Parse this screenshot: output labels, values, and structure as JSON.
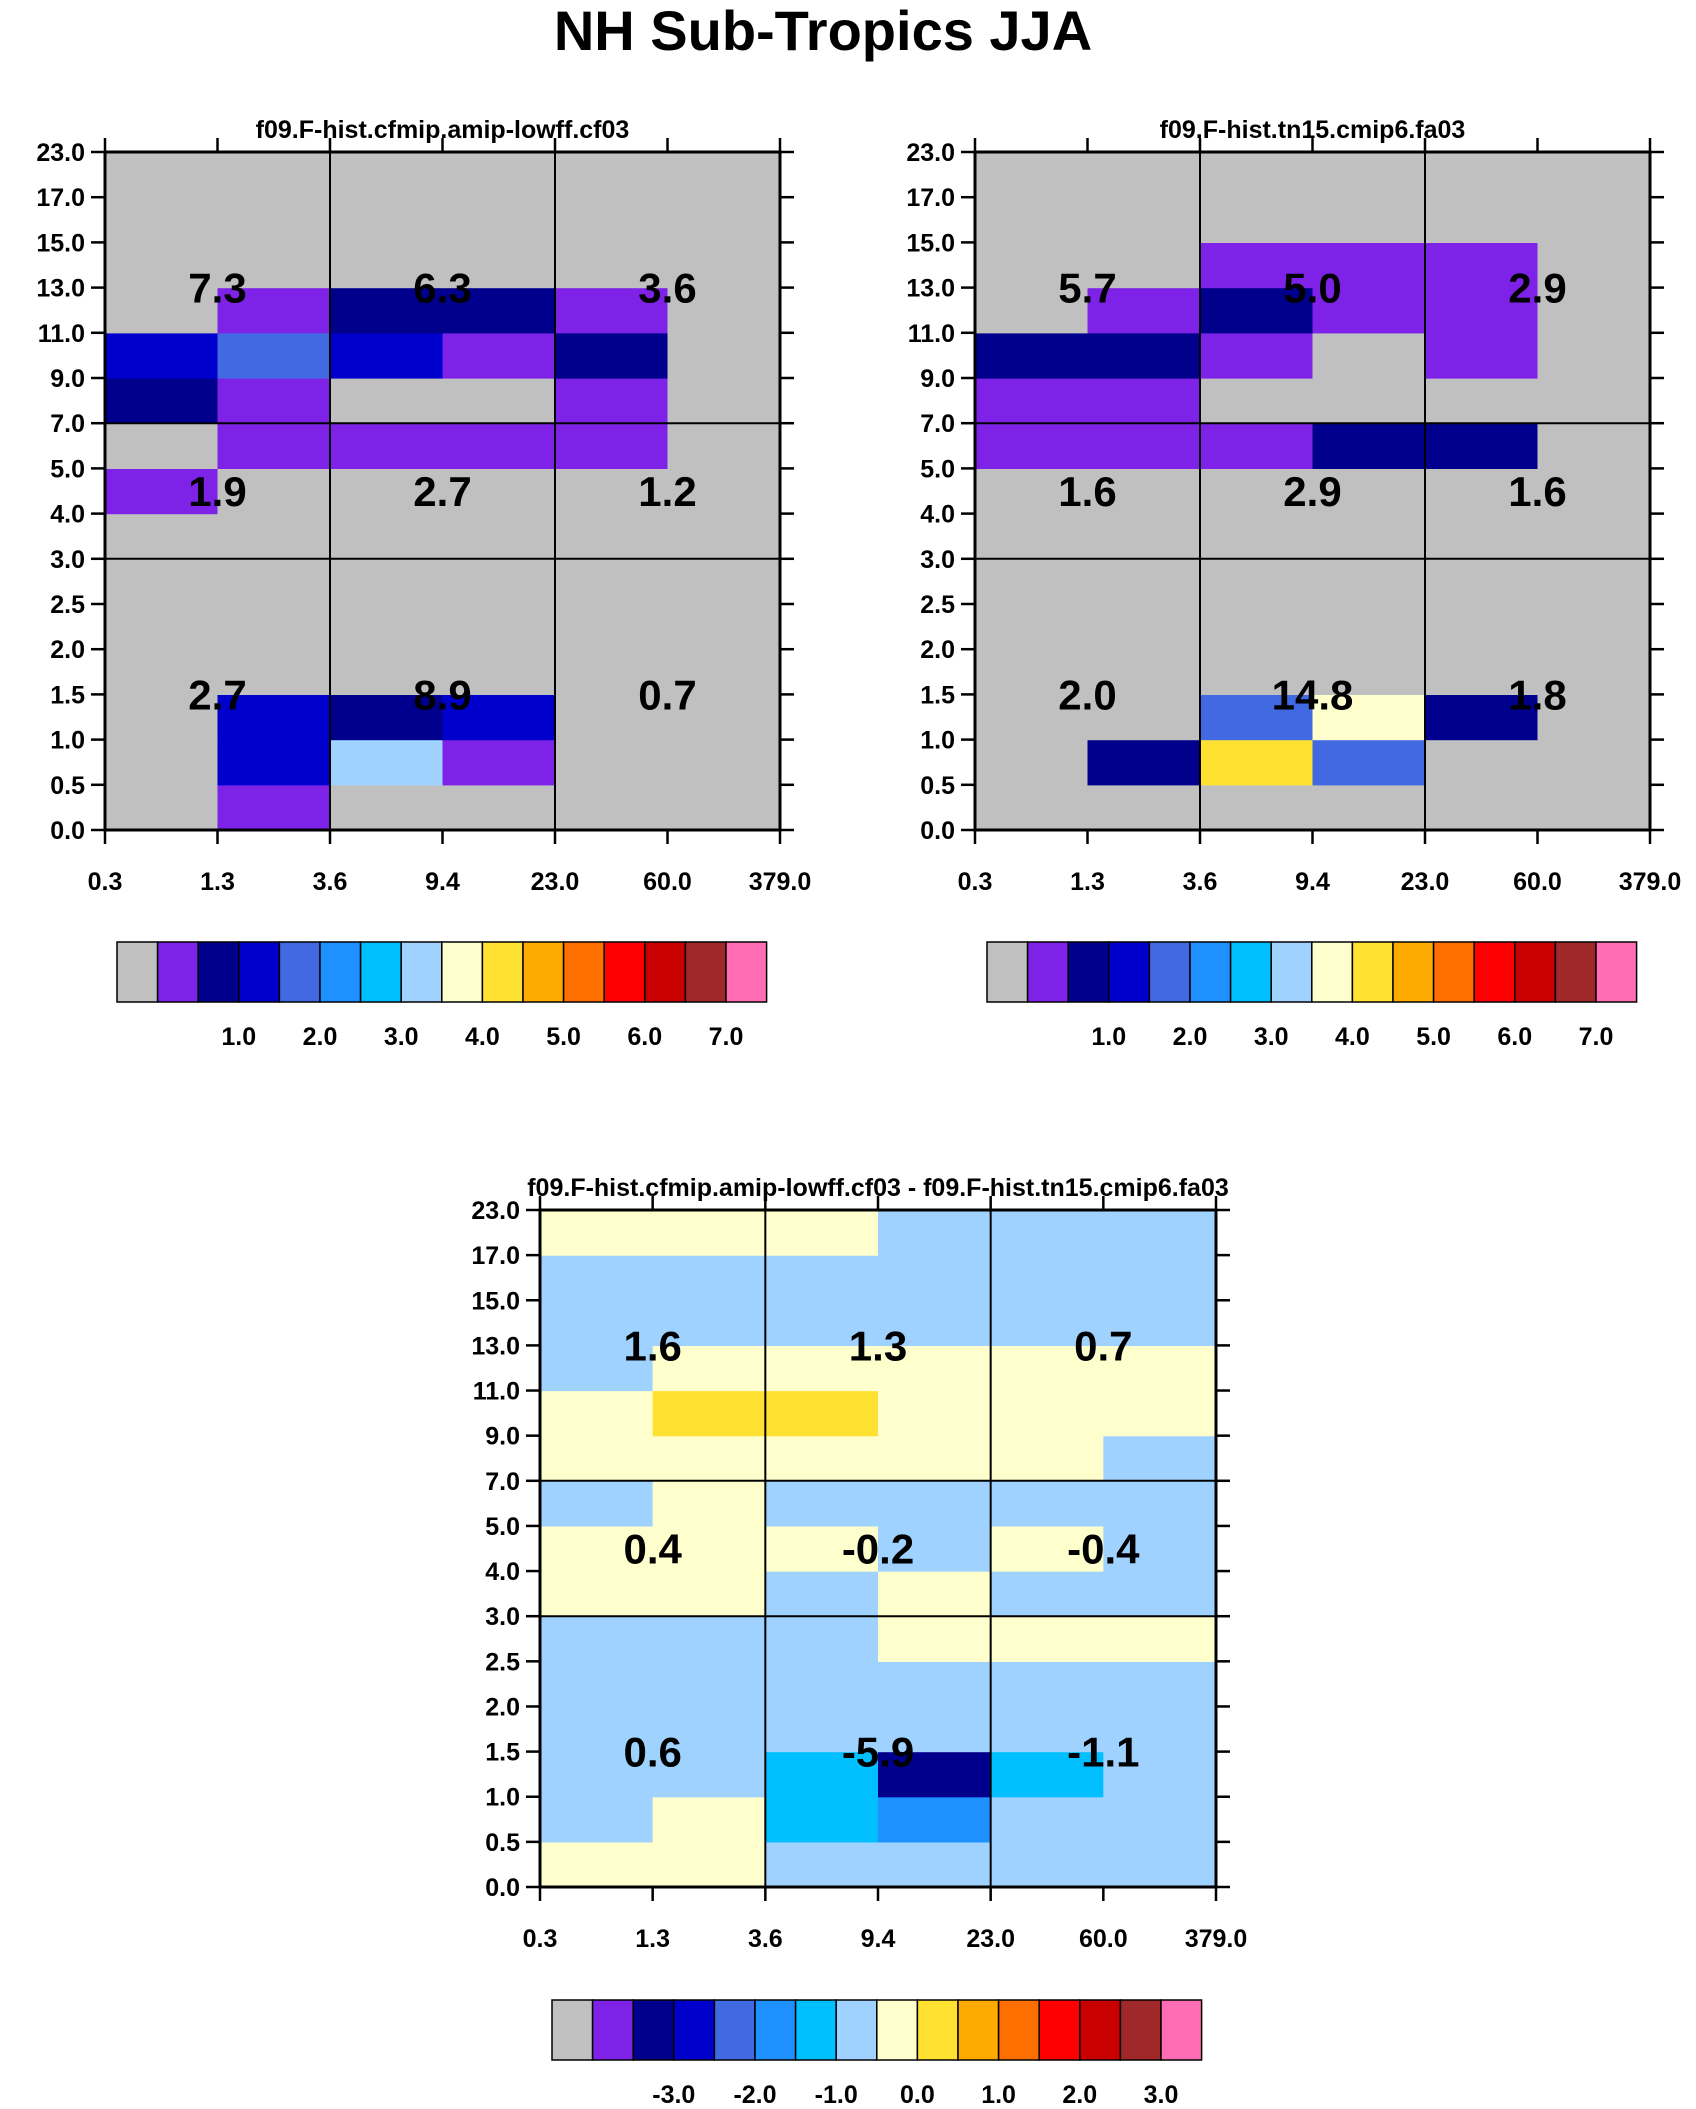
{
  "figure_title": "NH Sub-Tropics JJA",
  "colors": {
    "palette": [
      "#c0c0c0",
      "#7d22e6",
      "#00008c",
      "#0000cd",
      "#4169e1",
      "#1e90ff",
      "#00bfff",
      "#a0d2ff",
      "#ffffcd",
      "#ffe132",
      "#ffaa00",
      "#ff6e00",
      "#ff0000",
      "#c80000",
      "#a02828",
      "#ff6eb4"
    ],
    "gray": "#c0c0c0"
  },
  "chart_data": [
    {
      "type": "heatmap",
      "title": "f09.F-hist.cfmip.amip-lowff.cf03",
      "x_ticks": [
        "0.3",
        "1.3",
        "3.6",
        "9.4",
        "23.0",
        "60.0",
        "379.0"
      ],
      "y_ticks": [
        "0.0",
        "0.5",
        "1.0",
        "1.5",
        "2.0",
        "2.5",
        "3.0",
        "4.0",
        "5.0",
        "7.0",
        "9.0",
        "11.0",
        "13.0",
        "15.0",
        "17.0",
        "23.0"
      ],
      "cells": [
        [
          0,
          1,
          0,
          0,
          0,
          0
        ],
        [
          0,
          3,
          7,
          1,
          0,
          0
        ],
        [
          0,
          3,
          2,
          3,
          0,
          0
        ],
        [
          0,
          0,
          0,
          0,
          0,
          0
        ],
        [
          0,
          0,
          0,
          0,
          0,
          0
        ],
        [
          0,
          0,
          0,
          0,
          0,
          0
        ],
        [
          0,
          0,
          0,
          0,
          0,
          0
        ],
        [
          1,
          0,
          0,
          0,
          0,
          0
        ],
        [
          0,
          1,
          1,
          1,
          1,
          0
        ],
        [
          2,
          1,
          0,
          0,
          1,
          0
        ],
        [
          3,
          4,
          3,
          1,
          2,
          0
        ],
        [
          0,
          1,
          2,
          2,
          1,
          0
        ],
        [
          0,
          0,
          0,
          0,
          0,
          0
        ],
        [
          0,
          0,
          0,
          0,
          0,
          0
        ],
        [
          0,
          0,
          0,
          0,
          0,
          0
        ]
      ],
      "group_values": [
        [
          {
            "label": "7.3"
          },
          {
            "label": "6.3"
          },
          {
            "label": "3.6"
          }
        ],
        [
          {
            "label": "1.9"
          },
          {
            "label": "2.7"
          },
          {
            "label": "1.2"
          }
        ],
        [
          {
            "label": "2.7"
          },
          {
            "label": "8.9"
          },
          {
            "label": "0.7"
          }
        ]
      ],
      "colorbar": {
        "labels": [
          "1.0",
          "2.0",
          "3.0",
          "4.0",
          "5.0",
          "6.0",
          "7.0"
        ]
      }
    },
    {
      "type": "heatmap",
      "title": "f09.F-hist.tn15.cmip6.fa03",
      "x_ticks": [
        "0.3",
        "1.3",
        "3.6",
        "9.4",
        "23.0",
        "60.0",
        "379.0"
      ],
      "y_ticks": [
        "0.0",
        "0.5",
        "1.0",
        "1.5",
        "2.0",
        "2.5",
        "3.0",
        "4.0",
        "5.0",
        "7.0",
        "9.0",
        "11.0",
        "13.0",
        "15.0",
        "17.0",
        "23.0"
      ],
      "cells": [
        [
          0,
          0,
          0,
          0,
          0,
          0
        ],
        [
          0,
          2,
          9,
          4,
          0,
          0
        ],
        [
          0,
          0,
          4,
          8,
          2,
          0
        ],
        [
          0,
          0,
          0,
          0,
          0,
          0
        ],
        [
          0,
          0,
          0,
          0,
          0,
          0
        ],
        [
          0,
          0,
          0,
          0,
          0,
          0
        ],
        [
          0,
          0,
          0,
          0,
          0,
          0
        ],
        [
          0,
          0,
          0,
          0,
          0,
          0
        ],
        [
          1,
          1,
          1,
          2,
          2,
          0
        ],
        [
          1,
          1,
          0,
          0,
          0,
          0
        ],
        [
          2,
          2,
          1,
          0,
          1,
          0
        ],
        [
          0,
          1,
          2,
          1,
          1,
          0
        ],
        [
          0,
          0,
          1,
          1,
          1,
          0
        ],
        [
          0,
          0,
          0,
          0,
          0,
          0
        ],
        [
          0,
          0,
          0,
          0,
          0,
          0
        ]
      ],
      "group_values": [
        [
          {
            "label": "5.7"
          },
          {
            "label": "5.0"
          },
          {
            "label": "2.9"
          }
        ],
        [
          {
            "label": "1.6"
          },
          {
            "label": "2.9"
          },
          {
            "label": "1.6"
          }
        ],
        [
          {
            "label": "2.0"
          },
          {
            "label": "14.8"
          },
          {
            "label": "1.8"
          }
        ]
      ],
      "colorbar": {
        "labels": [
          "1.0",
          "2.0",
          "3.0",
          "4.0",
          "5.0",
          "6.0",
          "7.0"
        ]
      }
    },
    {
      "type": "heatmap",
      "title": "f09.F-hist.cfmip.amip-lowff.cf03 - f09.F-hist.tn15.cmip6.fa03",
      "x_ticks": [
        "0.3",
        "1.3",
        "3.6",
        "9.4",
        "23.0",
        "60.0",
        "379.0"
      ],
      "y_ticks": [
        "0.0",
        "0.5",
        "1.0",
        "1.5",
        "2.0",
        "2.5",
        "3.0",
        "4.0",
        "5.0",
        "7.0",
        "9.0",
        "11.0",
        "13.0",
        "15.0",
        "17.0",
        "23.0"
      ],
      "cells": [
        [
          8,
          8,
          7,
          7,
          7,
          7
        ],
        [
          7,
          8,
          6,
          5,
          7,
          7
        ],
        [
          7,
          7,
          6,
          2,
          6,
          7
        ],
        [
          7,
          7,
          7,
          7,
          7,
          7
        ],
        [
          7,
          7,
          7,
          7,
          7,
          7
        ],
        [
          7,
          7,
          7,
          8,
          8,
          8
        ],
        [
          8,
          8,
          7,
          8,
          7,
          7
        ],
        [
          8,
          8,
          8,
          7,
          8,
          7
        ],
        [
          7,
          8,
          7,
          7,
          7,
          7
        ],
        [
          8,
          8,
          8,
          8,
          8,
          7
        ],
        [
          8,
          9,
          9,
          8,
          8,
          8
        ],
        [
          7,
          8,
          8,
          8,
          8,
          8
        ],
        [
          7,
          7,
          7,
          7,
          7,
          7
        ],
        [
          7,
          7,
          7,
          7,
          7,
          7
        ],
        [
          8,
          8,
          8,
          7,
          7,
          7
        ]
      ],
      "group_values": [
        [
          {
            "label": "1.6"
          },
          {
            "label": "1.3"
          },
          {
            "label": "0.7"
          }
        ],
        [
          {
            "label": "0.4"
          },
          {
            "label": "-0.2"
          },
          {
            "label": "-0.4"
          }
        ],
        [
          {
            "label": "0.6"
          },
          {
            "label": "-5.9"
          },
          {
            "label": "-1.1"
          }
        ]
      ],
      "colorbar": {
        "labels": [
          "-3.0",
          "-2.0",
          "-1.0",
          "0.0",
          "1.0",
          "2.0",
          "3.0"
        ]
      }
    }
  ]
}
